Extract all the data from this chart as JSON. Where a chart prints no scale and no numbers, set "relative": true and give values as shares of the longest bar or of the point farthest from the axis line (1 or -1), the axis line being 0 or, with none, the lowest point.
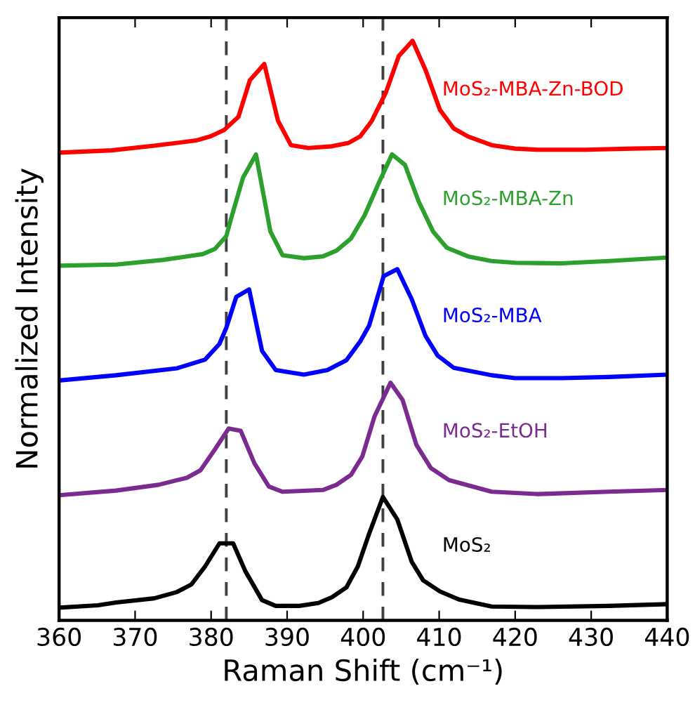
{
  "chart_data": {
    "type": "line",
    "relative": true,
    "xlabel": "Raman Shift (cm⁻¹)",
    "ylabel": "Normalized Intensity",
    "xlim": [
      360,
      440
    ],
    "xticks": [
      360,
      370,
      380,
      390,
      400,
      410,
      420,
      430,
      440
    ],
    "grid": false,
    "legend": false,
    "marker": "none",
    "line_style": "solid",
    "tick_labels": "x",
    "ref_lines": [
      {
        "axis": "x",
        "value": 382.0,
        "color": "#404040",
        "line_style": "dashed"
      },
      {
        "axis": "x",
        "value": 402.6,
        "color": "#404040",
        "line_style": "dashed"
      }
    ],
    "series": [
      {
        "name": "MoS₂-MBA-Zn-BOD",
        "color": "#ff0000",
        "x": [
          360,
          366.9,
          372.5,
          378.0,
          379.9,
          381.7,
          383.6,
          385.1,
          387.0,
          388.8,
          390.5,
          392.8,
          395.9,
          398.1,
          399.6,
          401.1,
          403.0,
          404.7,
          406.5,
          408.2,
          410.1,
          411.9,
          413.8,
          416.9,
          420.0,
          423.0,
          429.2,
          435.4,
          440
        ],
        "values": [
          0.807,
          0.811,
          0.819,
          0.828,
          0.835,
          0.846,
          0.869,
          0.932,
          0.96,
          0.862,
          0.82,
          0.815,
          0.818,
          0.824,
          0.835,
          0.861,
          0.911,
          0.974,
          1.0,
          0.95,
          0.881,
          0.849,
          0.835,
          0.82,
          0.814,
          0.812,
          0.812,
          0.814,
          0.815
        ]
      },
      {
        "name": "MoS₂-MBA-Zn",
        "color": "#2ca02c",
        "x": [
          360,
          367.5,
          373.7,
          378.9,
          380.5,
          382.0,
          382.6,
          384.2,
          385.9,
          387.8,
          389.4,
          392.2,
          394.7,
          396.5,
          398.4,
          400.2,
          402.1,
          403.8,
          405.5,
          407.3,
          409.2,
          411.0,
          413.8,
          416.9,
          420.0,
          426.1,
          432.3,
          440
        ],
        "values": [
          0.612,
          0.614,
          0.622,
          0.632,
          0.641,
          0.663,
          0.692,
          0.764,
          0.804,
          0.671,
          0.63,
          0.625,
          0.628,
          0.638,
          0.659,
          0.699,
          0.756,
          0.804,
          0.786,
          0.723,
          0.671,
          0.643,
          0.628,
          0.62,
          0.617,
          0.616,
          0.62,
          0.626
        ]
      },
      {
        "name": "MoS₂-MBA",
        "color": "#0000ff",
        "x": [
          360,
          367.5,
          375.5,
          379.2,
          381.1,
          382.0,
          383.3,
          385.0,
          386.7,
          388.5,
          392.2,
          395.3,
          397.8,
          399.6,
          400.8,
          402.7,
          404.5,
          406.4,
          408.2,
          409.8,
          411.9,
          416.9,
          420.0,
          426.1,
          432.3,
          440
        ],
        "values": [
          0.414,
          0.423,
          0.435,
          0.45,
          0.477,
          0.505,
          0.558,
          0.571,
          0.465,
          0.432,
          0.424,
          0.432,
          0.449,
          0.481,
          0.509,
          0.594,
          0.606,
          0.554,
          0.491,
          0.457,
          0.436,
          0.423,
          0.418,
          0.418,
          0.42,
          0.424
        ]
      },
      {
        "name": "MoS₂-EtOH",
        "color": "#7b2a90",
        "x": [
          360,
          367.5,
          373.1,
          376.8,
          378.6,
          380.5,
          382.3,
          383.9,
          385.7,
          387.6,
          389.4,
          394.7,
          396.5,
          398.4,
          399.9,
          401.5,
          403.6,
          405.2,
          407.0,
          408.9,
          411.3,
          416.9,
          423.0,
          432.3,
          440
        ],
        "values": [
          0.216,
          0.224,
          0.234,
          0.246,
          0.259,
          0.295,
          0.331,
          0.327,
          0.271,
          0.231,
          0.222,
          0.225,
          0.234,
          0.251,
          0.283,
          0.352,
          0.41,
          0.38,
          0.303,
          0.263,
          0.242,
          0.222,
          0.218,
          0.222,
          0.225
        ]
      },
      {
        "name": "MoS₂",
        "color": "#000000",
        "x": [
          360,
          365.1,
          367.5,
          372.5,
          375.5,
          377.4,
          379.2,
          381.1,
          382.9,
          384.5,
          386.7,
          388.5,
          391.6,
          394.1,
          395.9,
          397.8,
          399.3,
          400.8,
          402.6,
          404.5,
          406.4,
          407.9,
          410.1,
          412.6,
          416.9,
          423.0,
          432.3,
          440
        ],
        "values": [
          0.022,
          0.026,
          0.031,
          0.038,
          0.049,
          0.062,
          0.093,
          0.133,
          0.133,
          0.085,
          0.035,
          0.025,
          0.025,
          0.03,
          0.04,
          0.057,
          0.093,
          0.15,
          0.213,
          0.174,
          0.101,
          0.069,
          0.05,
          0.036,
          0.024,
          0.023,
          0.025,
          0.028
        ]
      }
    ]
  }
}
